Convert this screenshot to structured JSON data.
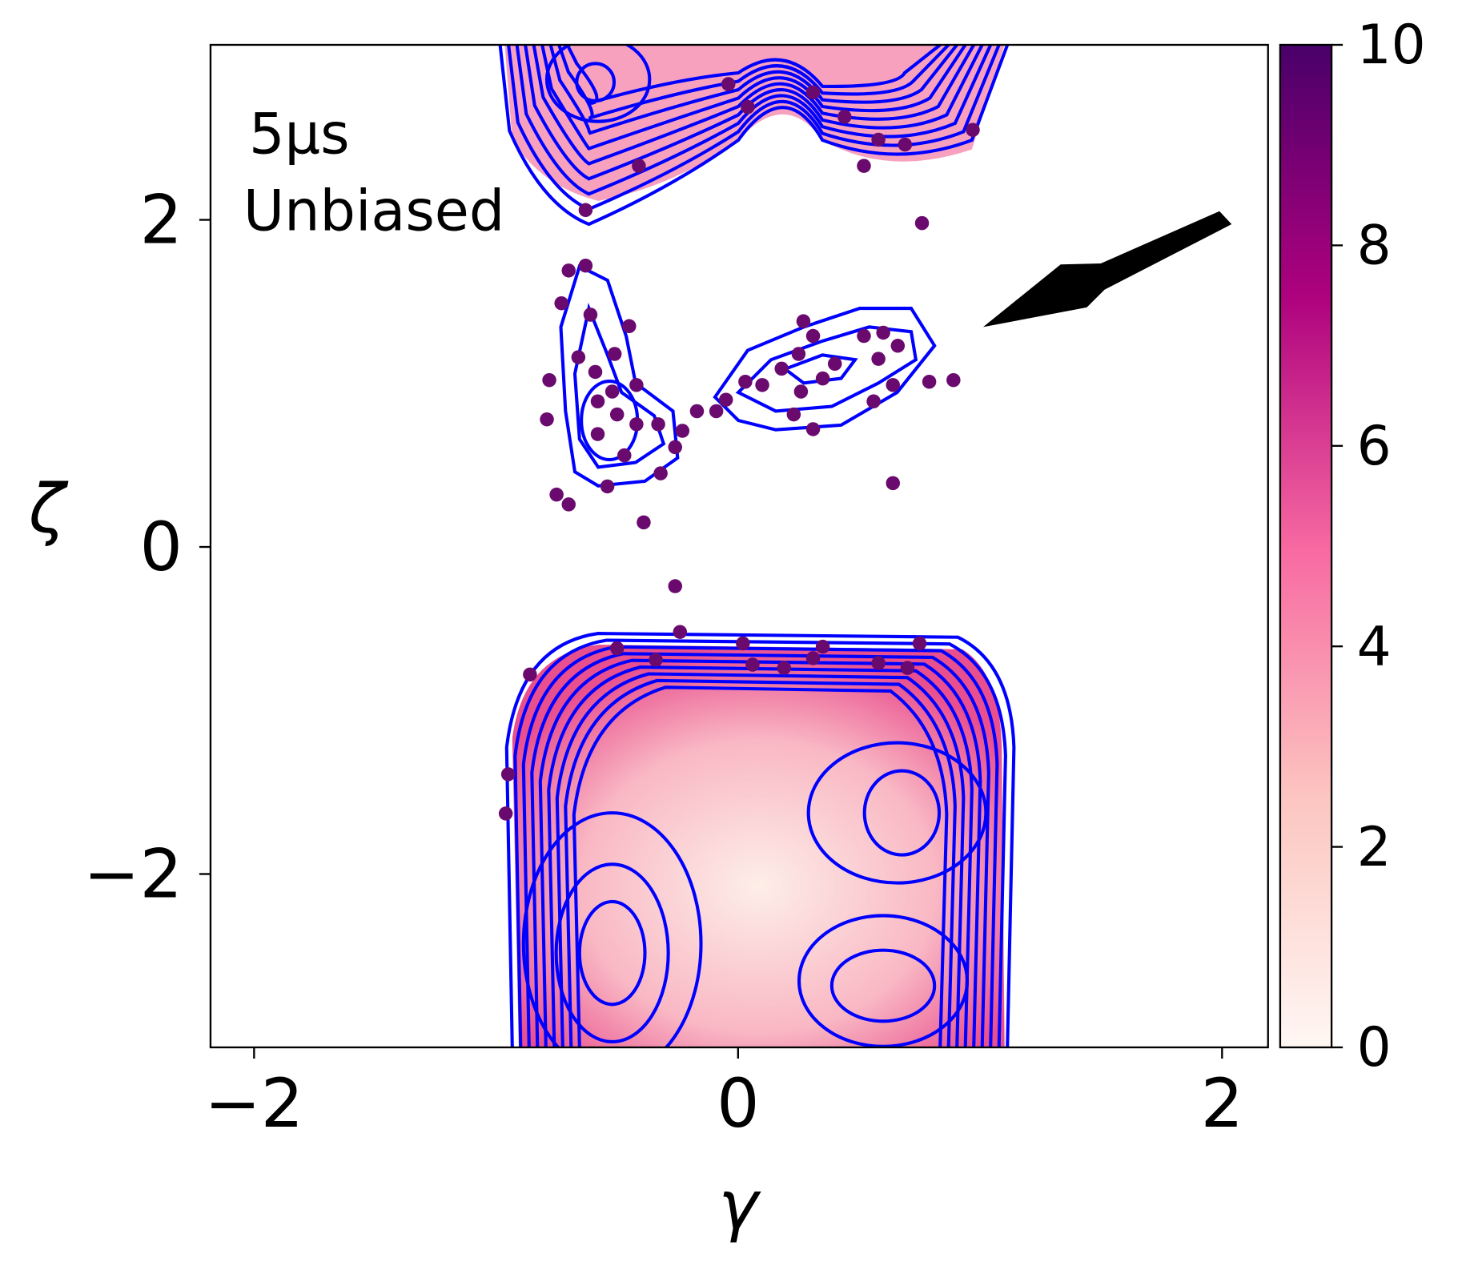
{
  "chart_data": {
    "type": "scatter",
    "x_label": "γ",
    "y_label": "ζ",
    "annotations": [
      "5μs",
      "Unbiased"
    ],
    "xlim": [
      -2.18,
      2.19
    ],
    "ylim": [
      -3.06,
      3.07
    ],
    "xticks": [
      {
        "value": -2,
        "label": "−2"
      },
      0,
      2
    ],
    "yticks": [
      {
        "value": -2,
        "label": "−2"
      },
      0,
      2
    ],
    "point_color": "#6a0a6e",
    "x": [
      -0.63,
      0.52,
      0.76,
      0.89,
      0.64,
      -0.39,
      -0.26,
      -0.75,
      -0.7,
      -0.54,
      -0.79,
      -0.78,
      -0.7,
      -0.63,
      -0.73,
      -0.61,
      -0.45,
      -0.66,
      -0.51,
      -0.59,
      -0.42,
      -0.52,
      -0.58,
      -0.5,
      -0.42,
      -0.58,
      -0.47,
      -0.33,
      -0.23,
      -0.26,
      -0.32,
      -0.17,
      -0.09,
      -0.05,
      0.03,
      0.1,
      0.18,
      0.27,
      0.31,
      0.25,
      0.35,
      0.4,
      0.26,
      0.23,
      0.31,
      0.52,
      0.6,
      0.66,
      0.58,
      0.64,
      0.56,
      0.79,
      -0.86,
      -0.95,
      -0.96,
      -0.24,
      0.02,
      0.35,
      0.75,
      -0.5,
      -0.34,
      0.06,
      0.19,
      0.31,
      0.58,
      0.7,
      0.31,
      0.44,
      0.58,
      0.69,
      0.97,
      0.04,
      -0.04,
      -0.41
    ],
    "y": [
      2.06,
      2.33,
      1.98,
      1.02,
      0.39,
      0.15,
      -0.24,
      0.32,
      0.26,
      0.37,
      0.78,
      1.02,
      1.69,
      1.72,
      1.49,
      1.42,
      1.35,
      1.16,
      1.18,
      1.07,
      0.99,
      0.95,
      0.89,
      0.81,
      0.75,
      0.69,
      0.56,
      0.75,
      0.71,
      0.61,
      0.45,
      0.83,
      0.83,
      0.9,
      1.01,
      0.99,
      1.09,
      1.38,
      1.29,
      1.18,
      1.03,
      1.12,
      0.95,
      0.81,
      0.72,
      1.29,
      1.31,
      1.23,
      1.15,
      0.99,
      0.89,
      1.01,
      -0.78,
      -1.39,
      -1.63,
      -0.52,
      -0.59,
      -0.61,
      -0.59,
      -0.62,
      -0.69,
      -0.72,
      -0.74,
      -0.68,
      -0.71,
      -0.74,
      2.78,
      2.63,
      2.49,
      2.46,
      2.55,
      2.69,
      2.83,
      2.33
    ],
    "colorbar": {
      "lim": [
        0,
        10
      ],
      "ticks": [
        0,
        2,
        4,
        6,
        8,
        10
      ],
      "colors": [
        "#fff7f3",
        "#fcc5c0",
        "#f768a1",
        "#ae017e",
        "#49006a"
      ]
    }
  }
}
